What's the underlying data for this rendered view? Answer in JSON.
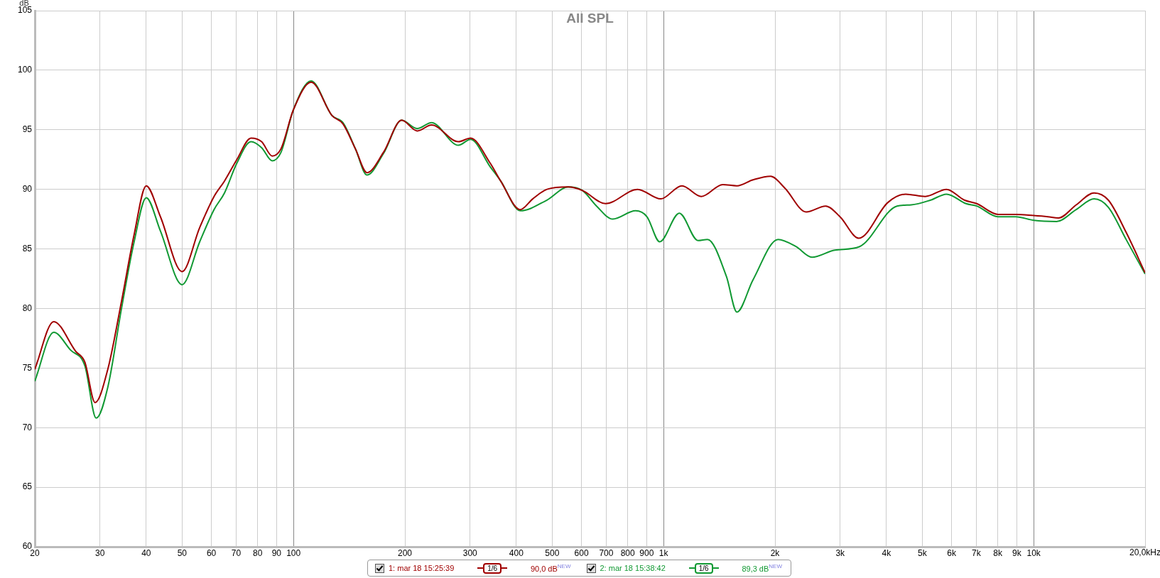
{
  "chart_data": {
    "type": "line",
    "title": "All SPL",
    "ylabel": "dB",
    "log": "x",
    "grid": true,
    "legend": "bottom",
    "marker": "none",
    "line_style": "solid",
    "xlim": [
      20,
      20000
    ],
    "ylim": [
      60,
      105
    ],
    "xticks": [
      20,
      30,
      40,
      50,
      60,
      70,
      80,
      90,
      100,
      200,
      300,
      400,
      500,
      600,
      700,
      800,
      900,
      {
        "value": 1000,
        "label": "1k"
      },
      {
        "value": 2000,
        "label": "2k"
      },
      {
        "value": 3000,
        "label": "3k"
      },
      {
        "value": 4000,
        "label": "4k"
      },
      {
        "value": 5000,
        "label": "5k"
      },
      {
        "value": 6000,
        "label": "6k"
      },
      {
        "value": 7000,
        "label": "7k"
      },
      {
        "value": 8000,
        "label": "8k"
      },
      {
        "value": 9000,
        "label": "9k"
      },
      {
        "value": 10000,
        "label": "10k"
      },
      {
        "value": 20000,
        "label": null
      }
    ],
    "xlabel": "20,0kHz",
    "yticks": [
      60,
      65,
      70,
      75,
      80,
      85,
      90,
      95,
      100,
      105
    ],
    "annotations": [
      "1/6",
      "90,0 dB$^{NEW}$",
      "1/6",
      "89,3 dB$^{NEW}$"
    ],
    "series": [
      {
        "name": "1: mar 18 15:25:39",
        "color": "#a00000",
        "x": [
          20,
          22.5,
          25.8,
          27.3,
          29.1,
          31.5,
          34.3,
          37.1,
          40,
          43.7,
          50,
          55.8,
          61,
          65.1,
          70.3,
          76.8,
          82,
          87.6,
          92.5,
          100,
          111.6,
          127,
          136,
          147,
          158,
          175,
          196,
          216,
          236,
          279,
          301,
          340,
          363,
          410,
          443,
          484,
          552,
          604,
          697,
          851,
          982,
          1121,
          1265,
          1445,
          1578,
          1744,
          1946,
          2127,
          2429,
          2742,
          2997,
          3369,
          4037,
          4509,
          5093,
          5814,
          6494,
          7018,
          8010,
          8942,
          10000,
          10920,
          11670,
          13030,
          14560,
          15910,
          17770,
          20000
        ],
        "values": [
          74.9,
          78.9,
          76.4,
          75.5,
          72.1,
          74.9,
          80.6,
          86.2,
          90.3,
          87.7,
          83.1,
          86.8,
          89.4,
          90.7,
          92.5,
          94.3,
          94.0,
          92.8,
          93.4,
          96.7,
          99.0,
          96.2,
          95.5,
          93.4,
          91.4,
          93.1,
          95.8,
          94.9,
          95.4,
          94.0,
          94.3,
          92.2,
          90.7,
          88.3,
          89.2,
          90.0,
          90.2,
          89.9,
          88.8,
          90.0,
          89.2,
          90.3,
          89.4,
          90.4,
          90.3,
          90.8,
          91.1,
          90.1,
          88.1,
          88.6,
          87.7,
          85.9,
          88.9,
          89.6,
          89.4,
          90.0,
          89.1,
          88.8,
          87.9,
          87.9,
          87.8,
          87.7,
          87.6,
          88.7,
          89.7,
          89.1,
          86.4,
          83.0
        ]
      },
      {
        "name": "2: mar 18 15:38:42",
        "color": "#119933",
        "x": [
          20,
          22.5,
          25,
          27.3,
          29.3,
          31.5,
          34.3,
          37.1,
          40,
          43.7,
          50,
          55.8,
          61,
          65.1,
          70.3,
          76.8,
          82,
          87.6,
          92.5,
          100,
          111.6,
          127,
          136,
          147,
          158,
          175,
          196,
          216,
          236,
          279,
          301,
          340,
          363,
          410,
          484,
          552,
          604,
          659,
          729,
          840,
          902,
          976,
          1103,
          1239,
          1314,
          1478,
          1578,
          1744,
          2039,
          2278,
          2517,
          2905,
          3388,
          4274,
          4669,
          5271,
          5814,
          6567,
          7018,
          8010,
          8942,
          10000,
          11535,
          13030,
          14560,
          15910,
          17770,
          20000
        ],
        "values": [
          73.9,
          78.0,
          76.5,
          75.2,
          70.8,
          73.4,
          80.0,
          85.6,
          89.3,
          86.5,
          82.0,
          85.6,
          88.3,
          89.7,
          92.2,
          94.0,
          93.5,
          92.4,
          93.1,
          96.7,
          99.1,
          96.2,
          95.6,
          93.4,
          91.2,
          93.0,
          95.8,
          95.1,
          95.6,
          93.7,
          94.2,
          91.9,
          90.7,
          88.2,
          89.1,
          90.2,
          89.9,
          88.6,
          87.5,
          88.2,
          87.7,
          85.6,
          88.0,
          85.7,
          85.8,
          82.7,
          79.7,
          82.4,
          85.8,
          85.2,
          84.3,
          84.9,
          85.2,
          88.6,
          88.7,
          89.1,
          89.6,
          88.8,
          88.6,
          87.7,
          87.7,
          87.4,
          87.3,
          88.3,
          89.2,
          88.5,
          85.8,
          82.9
        ]
      }
    ]
  }
}
